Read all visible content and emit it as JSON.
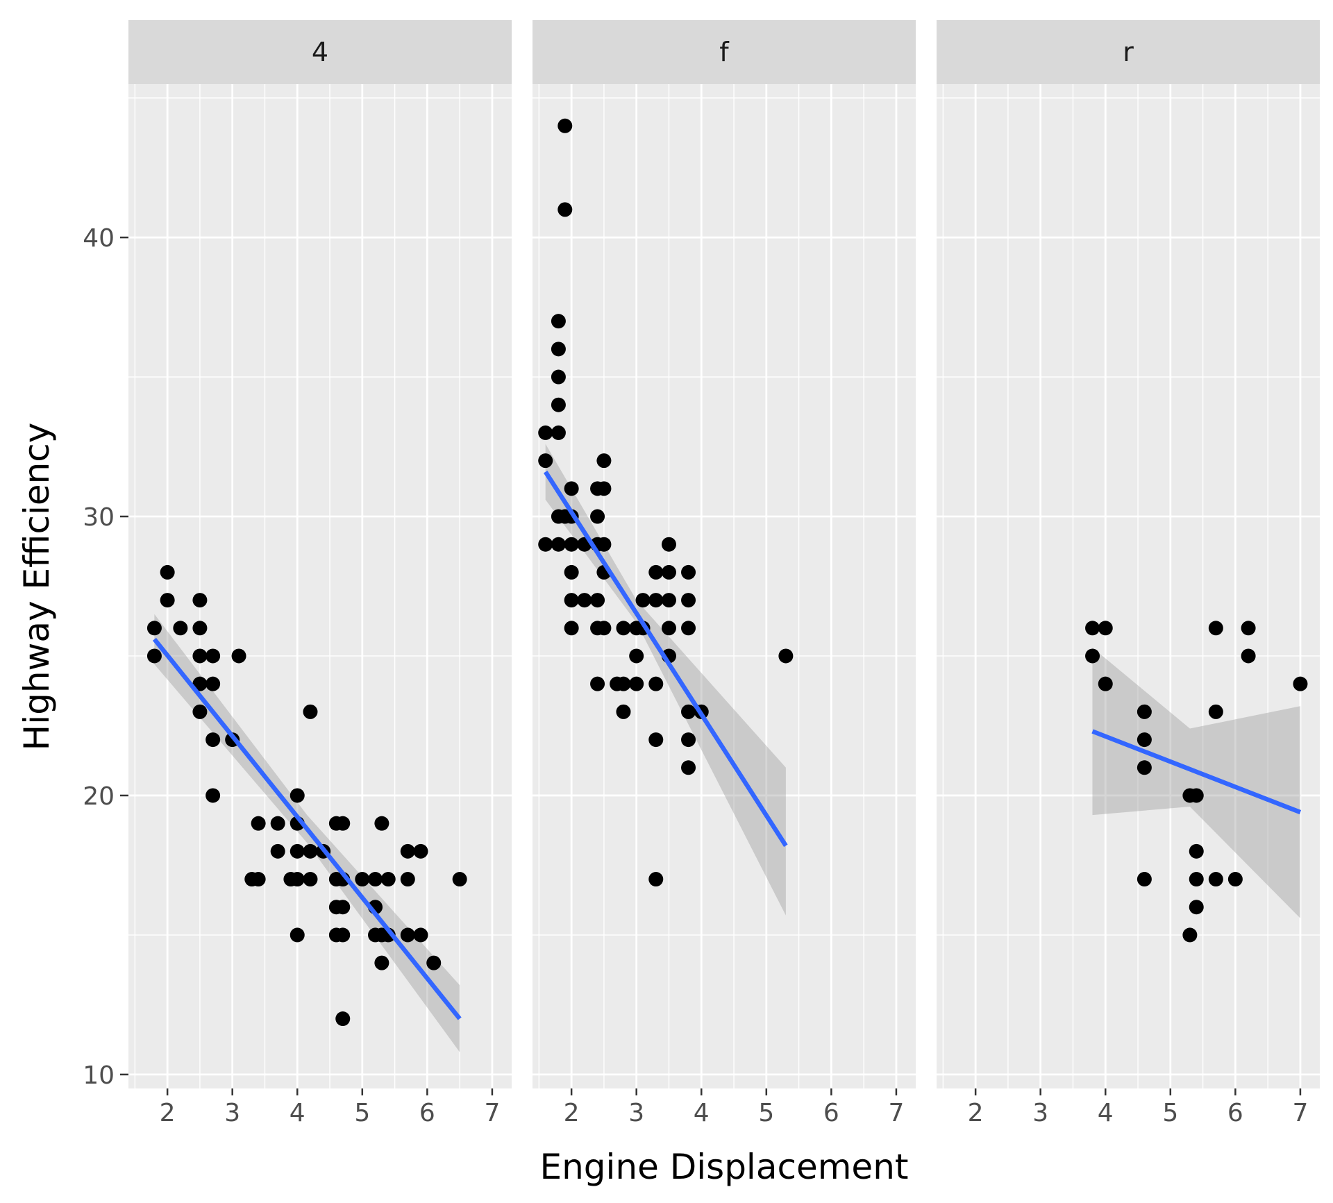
{
  "chart_data": {
    "type": "scatter",
    "xlabel": "Engine Displacement",
    "ylabel": "Highway Efficiency",
    "xlim": [
      1.4,
      7.3
    ],
    "ylim": [
      9.5,
      45.5
    ],
    "x_ticks": [
      2,
      3,
      4,
      5,
      6,
      7
    ],
    "y_ticks": [
      10,
      20,
      30,
      40
    ],
    "grid": true,
    "colors": {
      "panel_bg": "#ebebeb",
      "strip_bg": "#d9d9d9",
      "grid": "#ffffff",
      "points": "#000000",
      "fit_line": "#3366ff",
      "ribbon": "#999999"
    },
    "panels": [
      {
        "label": "4",
        "points": [
          [
            1.8,
            26
          ],
          [
            1.8,
            25
          ],
          [
            2.0,
            28
          ],
          [
            2.0,
            27
          ],
          [
            2.2,
            26
          ],
          [
            2.5,
            27
          ],
          [
            2.5,
            26
          ],
          [
            2.5,
            25
          ],
          [
            2.5,
            24
          ],
          [
            2.5,
            23
          ],
          [
            2.7,
            25
          ],
          [
            2.7,
            24
          ],
          [
            2.7,
            22
          ],
          [
            2.7,
            20
          ],
          [
            3.0,
            22
          ],
          [
            3.1,
            25
          ],
          [
            3.3,
            17
          ],
          [
            3.4,
            17
          ],
          [
            3.4,
            19
          ],
          [
            3.7,
            19
          ],
          [
            3.7,
            18
          ],
          [
            3.9,
            17
          ],
          [
            4.0,
            20
          ],
          [
            4.0,
            19
          ],
          [
            4.0,
            18
          ],
          [
            4.0,
            17
          ],
          [
            4.0,
            15
          ],
          [
            4.2,
            23
          ],
          [
            4.2,
            18
          ],
          [
            4.2,
            17
          ],
          [
            4.4,
            18
          ],
          [
            4.6,
            19
          ],
          [
            4.6,
            17
          ],
          [
            4.6,
            16
          ],
          [
            4.6,
            15
          ],
          [
            4.7,
            19
          ],
          [
            4.7,
            17
          ],
          [
            4.7,
            16
          ],
          [
            4.7,
            15
          ],
          [
            4.7,
            12
          ],
          [
            5.0,
            17
          ],
          [
            5.2,
            17
          ],
          [
            5.2,
            16
          ],
          [
            5.2,
            15
          ],
          [
            5.3,
            19
          ],
          [
            5.3,
            15
          ],
          [
            5.3,
            14
          ],
          [
            5.4,
            17
          ],
          [
            5.4,
            15
          ],
          [
            5.7,
            18
          ],
          [
            5.7,
            17
          ],
          [
            5.7,
            15
          ],
          [
            5.9,
            18
          ],
          [
            5.9,
            15
          ],
          [
            6.1,
            14
          ],
          [
            6.5,
            17
          ]
        ],
        "fit": {
          "x": [
            1.8,
            6.5
          ],
          "y": [
            25.6,
            12.0
          ]
        },
        "band": {
          "x": [
            1.8,
            4.15,
            6.5
          ],
          "upper": [
            26.5,
            19.3,
            13.2
          ],
          "lower": [
            24.7,
            18.3,
            10.8
          ]
        }
      },
      {
        "label": "f",
        "points": [
          [
            1.6,
            33
          ],
          [
            1.6,
            32
          ],
          [
            1.6,
            29
          ],
          [
            1.8,
            37
          ],
          [
            1.8,
            36
          ],
          [
            1.8,
            35
          ],
          [
            1.8,
            34
          ],
          [
            1.8,
            33
          ],
          [
            1.8,
            30
          ],
          [
            1.8,
            29
          ],
          [
            1.9,
            44
          ],
          [
            1.9,
            41
          ],
          [
            1.9,
            30
          ],
          [
            2.0,
            31
          ],
          [
            2.0,
            30
          ],
          [
            2.0,
            29
          ],
          [
            2.0,
            28
          ],
          [
            2.0,
            27
          ],
          [
            2.0,
            26
          ],
          [
            2.2,
            29
          ],
          [
            2.2,
            27
          ],
          [
            2.4,
            31
          ],
          [
            2.4,
            30
          ],
          [
            2.4,
            29
          ],
          [
            2.4,
            27
          ],
          [
            2.4,
            26
          ],
          [
            2.4,
            24
          ],
          [
            2.5,
            32
          ],
          [
            2.5,
            31
          ],
          [
            2.5,
            29
          ],
          [
            2.5,
            28
          ],
          [
            2.5,
            26
          ],
          [
            2.7,
            24
          ],
          [
            2.8,
            26
          ],
          [
            2.8,
            24
          ],
          [
            2.8,
            23
          ],
          [
            3.0,
            26
          ],
          [
            3.0,
            25
          ],
          [
            3.0,
            24
          ],
          [
            3.1,
            27
          ],
          [
            3.1,
            26
          ],
          [
            3.3,
            28
          ],
          [
            3.3,
            27
          ],
          [
            3.3,
            24
          ],
          [
            3.3,
            22
          ],
          [
            3.3,
            17
          ],
          [
            3.5,
            29
          ],
          [
            3.5,
            28
          ],
          [
            3.5,
            27
          ],
          [
            3.5,
            26
          ],
          [
            3.5,
            25
          ],
          [
            3.8,
            28
          ],
          [
            3.8,
            27
          ],
          [
            3.8,
            26
          ],
          [
            3.8,
            23
          ],
          [
            3.8,
            22
          ],
          [
            3.8,
            21
          ],
          [
            4.0,
            23
          ],
          [
            5.3,
            25
          ]
        ],
        "fit": {
          "x": [
            1.6,
            5.3
          ],
          "y": [
            31.6,
            18.2
          ]
        },
        "band": {
          "x": [
            1.6,
            3.0,
            5.3
          ],
          "upper": [
            32.6,
            27.0,
            21.0
          ],
          "lower": [
            30.6,
            26.2,
            15.7
          ]
        }
      },
      {
        "label": "r",
        "points": [
          [
            3.8,
            26
          ],
          [
            3.8,
            25
          ],
          [
            4.0,
            26
          ],
          [
            4.0,
            24
          ],
          [
            4.6,
            23
          ],
          [
            4.6,
            22
          ],
          [
            4.6,
            21
          ],
          [
            4.6,
            17
          ],
          [
            5.3,
            20
          ],
          [
            5.3,
            15
          ],
          [
            5.4,
            20
          ],
          [
            5.4,
            18
          ],
          [
            5.4,
            17
          ],
          [
            5.4,
            16
          ],
          [
            5.7,
            26
          ],
          [
            5.7,
            23
          ],
          [
            5.7,
            17
          ],
          [
            6.0,
            17
          ],
          [
            6.2,
            26
          ],
          [
            6.2,
            25
          ],
          [
            7.0,
            24
          ]
        ],
        "fit": {
          "x": [
            3.8,
            7.0
          ],
          "y": [
            22.3,
            19.4
          ]
        },
        "band": {
          "x": [
            3.8,
            5.3,
            7.0
          ],
          "upper": [
            25.3,
            22.4,
            23.2
          ],
          "lower": [
            19.3,
            19.6,
            15.6
          ]
        }
      }
    ]
  }
}
